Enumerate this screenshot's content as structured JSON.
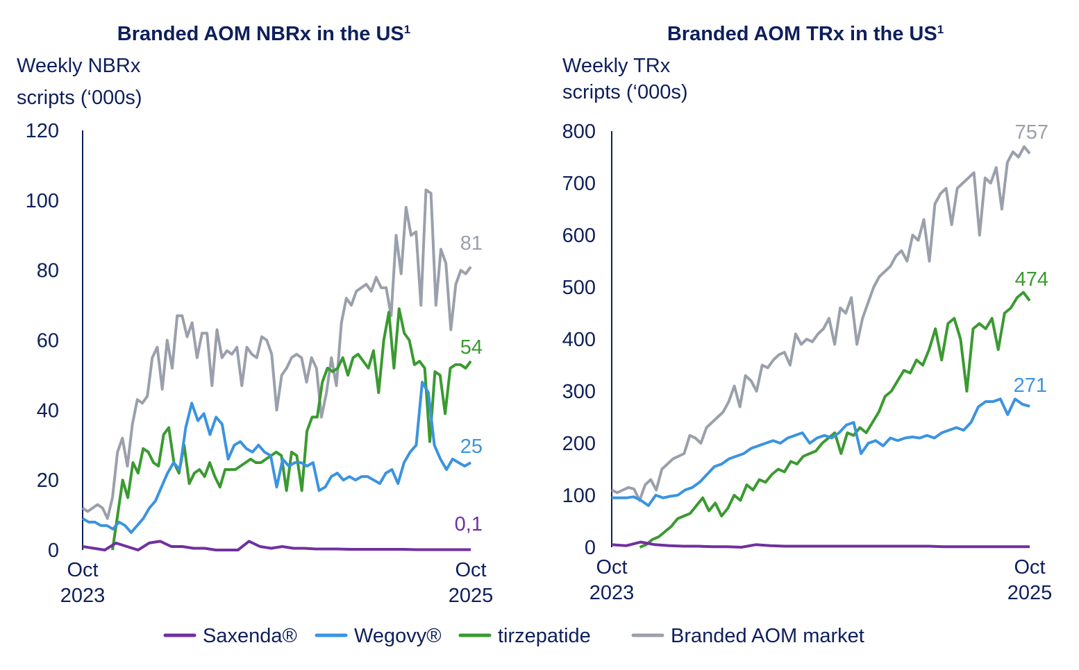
{
  "colors": {
    "Saxenda": "#7030a0",
    "Wegovy": "#3b93e0",
    "tirzepatide": "#3a9a30",
    "market": "#9aa0ab",
    "axis": "#0d1f5c"
  },
  "legend": [
    {
      "label": "Saxenda®",
      "color": "#7030a0"
    },
    {
      "label": "Wegovy®",
      "color": "#3b93e0"
    },
    {
      "label": "tirzepatide",
      "color": "#3a9a30"
    },
    {
      "label": "Branded AOM market",
      "color": "#9aa0ab"
    }
  ],
  "chart_data": [
    {
      "type": "line",
      "title": "Branded AOM NBRx in the US",
      "title_sup": "1",
      "ylabel_line1": "Weekly NBRx",
      "ylabel_line2": "scripts (‘000s)",
      "ylim": [
        0,
        120
      ],
      "yticks": [
        "0",
        "20",
        "40",
        "60",
        "80",
        "100",
        "120"
      ],
      "xlim_weeks": [
        0,
        104
      ],
      "xticks": [
        {
          "month": "Oct",
          "year": "2023"
        },
        {
          "month": "Oct",
          "year": "2025"
        }
      ],
      "series": [
        {
          "name": "Branded AOM market",
          "start_week": 0,
          "end_label": "81",
          "values": [
            12,
            11,
            12,
            13,
            12,
            9,
            15,
            28,
            32,
            24,
            36,
            43,
            42,
            44,
            55,
            58,
            46,
            60,
            52,
            67,
            67,
            61,
            65,
            55,
            62,
            62,
            47,
            63,
            55,
            57,
            56,
            58,
            47,
            58,
            56,
            55,
            61,
            60,
            56,
            40,
            50,
            52,
            55,
            56,
            55,
            48,
            55,
            52,
            38,
            45,
            55,
            47,
            65,
            72,
            70,
            74,
            75,
            76,
            74,
            78,
            75,
            75,
            67,
            90,
            79,
            98,
            90,
            91,
            70,
            103,
            102,
            70,
            86,
            82,
            63,
            76,
            80,
            79,
            81
          ]
        },
        {
          "name": "tirzepatide",
          "start_week": 8,
          "end_label": "54",
          "values": [
            0,
            10,
            20,
            15,
            25,
            22,
            29,
            28,
            25,
            24,
            33,
            35,
            25,
            22,
            30,
            19,
            22,
            23,
            21,
            25,
            21,
            18,
            23,
            23,
            23,
            24,
            25,
            26,
            25,
            25,
            26,
            27,
            28,
            27,
            17,
            28,
            27,
            17,
            34,
            38,
            38,
            48,
            52,
            51,
            52,
            55,
            50,
            55,
            56,
            54,
            52,
            57,
            45,
            60,
            68,
            52,
            69,
            62,
            60,
            53,
            54,
            52,
            31,
            51,
            50,
            39,
            52,
            53,
            53,
            52,
            54
          ]
        },
        {
          "name": "Wegovy",
          "start_week": 0,
          "end_label": "25",
          "values": [
            9,
            8,
            8,
            7,
            7,
            6,
            8,
            7,
            5,
            7,
            9,
            12,
            14,
            18,
            22,
            25,
            23,
            35,
            42,
            37,
            39,
            33,
            38,
            36,
            26,
            30,
            31,
            29,
            28,
            30,
            28,
            27,
            18,
            26,
            24,
            25,
            25,
            24,
            25,
            17,
            18,
            21,
            22,
            20,
            21,
            20,
            21,
            21,
            20,
            19,
            22,
            23,
            19,
            25,
            28,
            30,
            48,
            45,
            30,
            26,
            23,
            26,
            25,
            24,
            25
          ]
        },
        {
          "name": "Saxenda",
          "start_week": 0,
          "end_label": "0,1",
          "values": [
            1,
            0.5,
            0,
            2,
            1,
            0,
            2,
            2.5,
            1,
            1,
            0.5,
            0.5,
            0,
            0,
            0,
            2.5,
            1,
            0.5,
            1,
            0.5,
            0.5,
            0.3,
            0.3,
            0.3,
            0.2,
            0.2,
            0.2,
            0.2,
            0.2,
            0.2,
            0.1,
            0.1,
            0.1,
            0.1,
            0.1,
            0.1
          ]
        }
      ]
    },
    {
      "type": "line",
      "title": "Branded AOM TRx in the US",
      "title_sup": "1",
      "ylabel_line1": "Weekly TRx",
      "ylabel_line2": "scripts (‘000s)",
      "ylim": [
        0,
        800
      ],
      "yticks": [
        "0",
        "100",
        "200",
        "300",
        "400",
        "500",
        "600",
        "700",
        "800"
      ],
      "xlim_weeks": [
        0,
        104
      ],
      "xticks": [
        {
          "month": "Oct",
          "year": "2023"
        },
        {
          "month": "Oct",
          "year": "2025"
        }
      ],
      "series": [
        {
          "name": "Branded AOM market",
          "start_week": 0,
          "end_label": "757",
          "values": [
            110,
            105,
            110,
            115,
            112,
            90,
            120,
            130,
            110,
            150,
            160,
            170,
            175,
            180,
            215,
            210,
            200,
            230,
            240,
            250,
            260,
            280,
            310,
            270,
            330,
            320,
            300,
            350,
            345,
            360,
            370,
            375,
            350,
            410,
            390,
            400,
            395,
            410,
            420,
            440,
            390,
            460,
            450,
            480,
            390,
            440,
            470,
            500,
            520,
            530,
            540,
            560,
            570,
            550,
            600,
            590,
            630,
            550,
            660,
            680,
            690,
            620,
            690,
            700,
            710,
            720,
            600,
            710,
            700,
            730,
            650,
            740,
            760,
            750,
            770,
            757
          ]
        },
        {
          "name": "tirzepatide",
          "start_week": 7,
          "end_label": "474",
          "values": [
            0,
            5,
            15,
            20,
            30,
            40,
            55,
            60,
            65,
            80,
            95,
            70,
            85,
            60,
            75,
            100,
            90,
            120,
            110,
            130,
            125,
            140,
            150,
            145,
            165,
            160,
            175,
            180,
            185,
            200,
            210,
            220,
            180,
            220,
            215,
            230,
            220,
            240,
            260,
            290,
            300,
            320,
            340,
            335,
            360,
            350,
            380,
            420,
            360,
            430,
            440,
            400,
            300,
            420,
            430,
            420,
            440,
            380,
            450,
            460,
            480,
            490,
            474
          ]
        },
        {
          "name": "Wegovy",
          "start_week": 0,
          "end_label": "271",
          "values": [
            95,
            95,
            95,
            97,
            90,
            80,
            100,
            95,
            98,
            100,
            110,
            115,
            125,
            140,
            155,
            160,
            170,
            175,
            180,
            190,
            195,
            200,
            205,
            200,
            210,
            215,
            220,
            200,
            210,
            215,
            210,
            220,
            235,
            240,
            180,
            200,
            205,
            195,
            210,
            205,
            210,
            212,
            210,
            215,
            210,
            220,
            225,
            230,
            225,
            240,
            270,
            280,
            280,
            285,
            255,
            285,
            275,
            271
          ]
        },
        {
          "name": "Saxenda",
          "start_week": 0,
          "end_label": "",
          "values": [
            5,
            3,
            10,
            5,
            3,
            2,
            2,
            1,
            1,
            0,
            5,
            3,
            2,
            2,
            2,
            2,
            2,
            2,
            2,
            2,
            2,
            2,
            2,
            1,
            1,
            1,
            1,
            1,
            1,
            1
          ]
        }
      ]
    }
  ]
}
